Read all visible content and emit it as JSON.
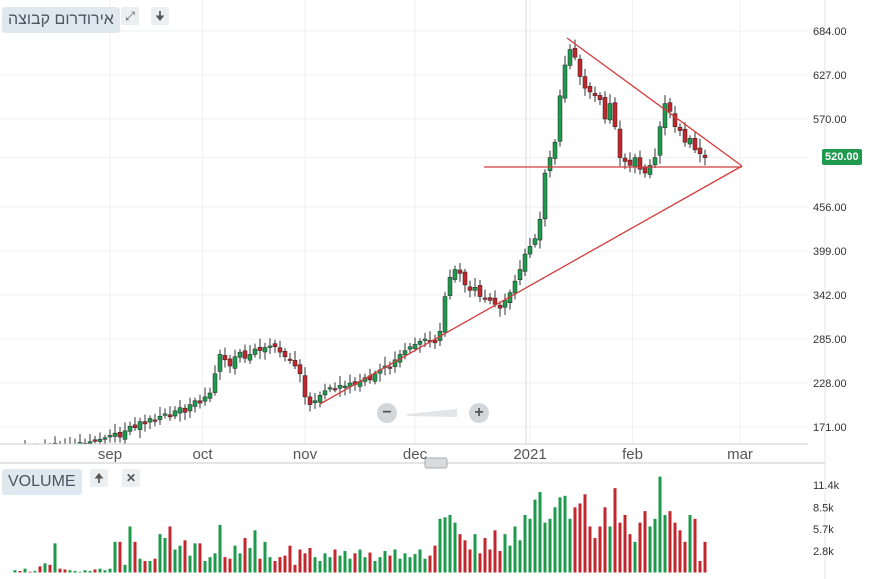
{
  "header": {
    "group_label": "אירודרום קבוצה",
    "expand_icon": "expand-icon",
    "download_icon": "arrow-down-icon"
  },
  "volume_panel": {
    "label": "VOLUME",
    "move_up_icon": "arrow-up-icon",
    "close_icon": "close-icon"
  },
  "last_price": "520.00",
  "zoom": {
    "minus": "−",
    "plus": "+"
  },
  "colors": {
    "up": "#1e9a4c",
    "down": "#c2272d",
    "trend": "#d23c3c",
    "grid": "#eef0f2"
  },
  "chart_data": {
    "type": "candlestick",
    "price_ticks": [
      "684.00",
      "627.00",
      "570.00",
      "520.00",
      "456.00",
      "399.00",
      "342.00",
      "285.00",
      "228.00",
      "171.00"
    ],
    "price_tick_values": [
      684,
      627,
      570,
      520,
      456,
      399,
      342,
      285,
      228,
      171
    ],
    "volume_ticks": [
      "11.4k",
      "8.5k",
      "5.7k",
      "2.8k"
    ],
    "volume_tick_values": [
      11.4,
      8.5,
      5.7,
      2.8
    ],
    "months": [
      "sep",
      "oct",
      "nov",
      "dec",
      "2021",
      "feb",
      "mar"
    ],
    "month_index": [
      0,
      18.5,
      39,
      61,
      84,
      104.5,
      126
    ],
    "first_visible_index": 19,
    "closes": [
      140,
      138,
      142,
      136,
      139,
      141,
      145,
      143,
      150,
      147,
      148,
      146,
      149,
      151,
      150,
      152,
      154,
      155,
      157,
      160,
      163,
      158,
      166,
      172,
      170,
      178,
      175,
      182,
      180,
      185,
      188,
      184,
      192,
      196,
      190,
      200,
      205,
      202,
      210,
      215,
      240,
      265,
      258,
      250,
      262,
      268,
      260,
      265,
      272,
      270,
      274,
      276,
      275,
      268,
      262,
      258,
      250,
      240,
      210,
      200,
      205,
      212,
      218,
      222,
      220,
      225,
      224,
      228,
      226,
      230,
      235,
      232,
      240,
      245,
      250,
      248,
      258,
      265,
      270,
      275,
      278,
      282,
      285,
      283,
      280,
      295,
      340,
      365,
      375,
      370,
      355,
      348,
      352,
      340,
      338,
      335,
      330,
      325,
      335,
      345,
      360,
      375,
      395,
      405,
      415,
      440,
      500,
      520,
      540,
      600,
      640,
      660,
      650,
      625,
      610,
      605,
      600,
      595,
      570,
      590,
      560,
      520,
      515,
      510,
      520,
      505,
      500,
      510,
      520,
      560,
      590,
      580,
      560,
      555,
      540,
      545,
      530,
      525,
      520
    ],
    "volumes_k": [
      0.3,
      0.2,
      0.5,
      0.1,
      0.2,
      0.8,
      1.2,
      1.0,
      3.8,
      0.5,
      0.4,
      0.3,
      0.2,
      0.1,
      0.3,
      0.2,
      0.4,
      0.5,
      0.3,
      0.5,
      4.0,
      4.0,
      1.0,
      6.0,
      4.0,
      1.8,
      1.5,
      1.5,
      1.8,
      5.0,
      4.5,
      6.0,
      3.0,
      3.5,
      4.2,
      2.2,
      3.8,
      3.8,
      1.5,
      2.0,
      2.5,
      6.2,
      2.0,
      1.8,
      3.5,
      2.5,
      4.5,
      3.2,
      5.5,
      1.8,
      4.0,
      2.0,
      1.5,
      2.0,
      2.2,
      3.5,
      1.0,
      3.0,
      2.5,
      3.2,
      2.0,
      1.5,
      2.5,
      2.0,
      3.0,
      2.2,
      2.8,
      1.8,
      2.5,
      3.0,
      2.0,
      2.6,
      1.5,
      2.0,
      2.8,
      2.2,
      3.0,
      1.8,
      2.5,
      2.0,
      2.4,
      3.0,
      1.8,
      2.2,
      3.5,
      7.0,
      7.2,
      7.5,
      6.5,
      5.0,
      4.2,
      3.0,
      5.0,
      2.5,
      4.5,
      3.0,
      5.5,
      2.8,
      5.0,
      3.5,
      6.0,
      4.2,
      7.5,
      7.0,
      9.5,
      10.5,
      6.5,
      7.0,
      8.5,
      9.8,
      10.0,
      7.0,
      8.5,
      9.0,
      10.2,
      6.0,
      4.5,
      6.0,
      8.5,
      6.0,
      11.0,
      6.5,
      7.5,
      5.0,
      4.0,
      6.5,
      8.0,
      6.0,
      7.0,
      12.5,
      7.5,
      8.0,
      6.5,
      5.5,
      4.0,
      7.5,
      7.0,
      1.5,
      4.0
    ]
  }
}
